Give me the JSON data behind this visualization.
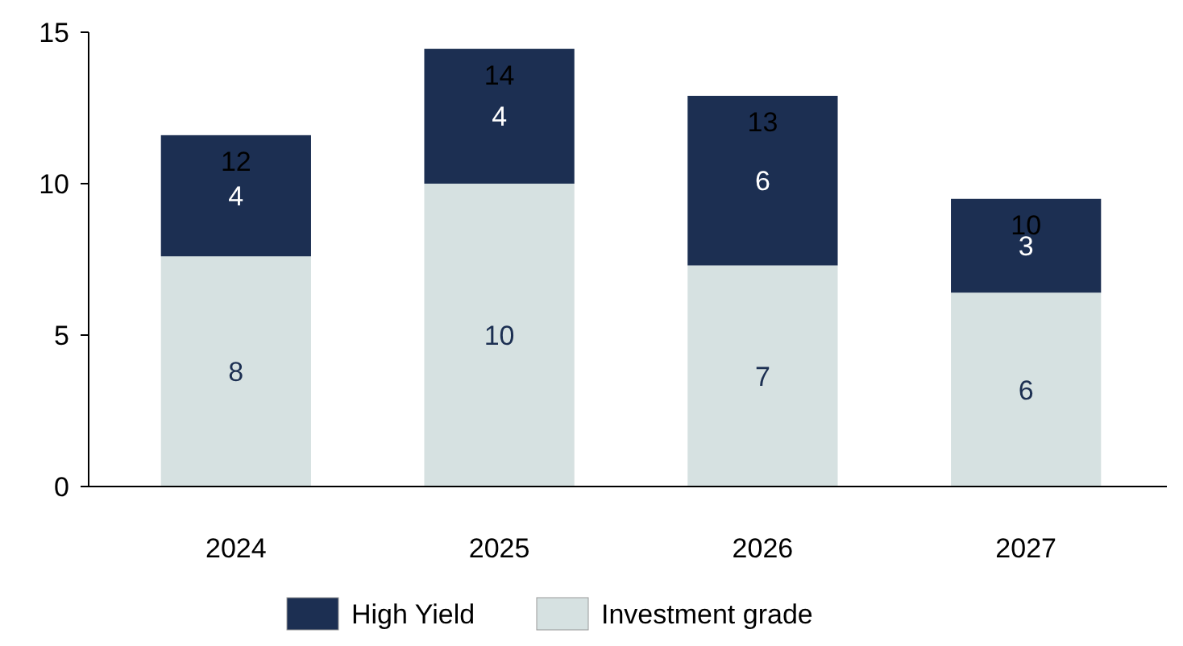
{
  "chart_data": {
    "type": "bar",
    "stacked": true,
    "categories": [
      "2024",
      "2025",
      "2026",
      "2027"
    ],
    "series": [
      {
        "name": "Investment grade",
        "color": "#d6e1e1",
        "values": [
          7.6,
          10.0,
          7.3,
          6.4
        ],
        "value_labels": [
          "8",
          "10",
          "7",
          "6"
        ]
      },
      {
        "name": "High Yield",
        "color": "#1c2f52",
        "values": [
          4.0,
          4.45,
          5.6,
          3.1
        ],
        "value_labels": [
          "4",
          "4",
          "6",
          "3"
        ]
      }
    ],
    "totals": [
      "12",
      "14",
      "13",
      "10"
    ],
    "ylim": [
      0,
      15
    ],
    "yticks": [
      0,
      5,
      10,
      15
    ],
    "legend": "bottom"
  }
}
